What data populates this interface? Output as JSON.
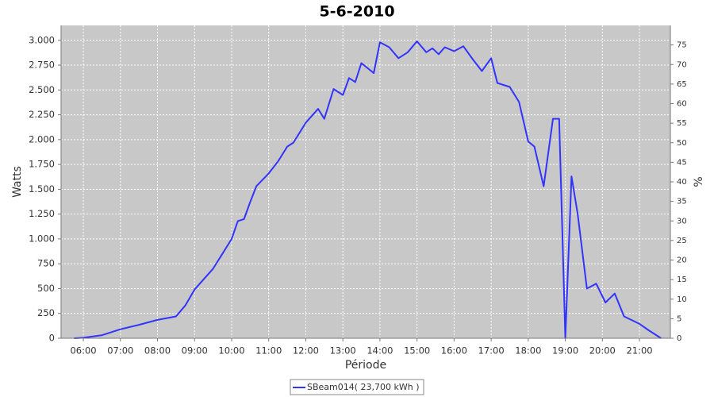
{
  "chart_data": {
    "type": "line",
    "title": "5-6-2010",
    "x_label": "Période",
    "y_label": "Watts",
    "y2_label": "%",
    "grid": true,
    "x": [
      "05:45",
      "06:00",
      "06:30",
      "07:00",
      "07:30",
      "08:00",
      "08:30",
      "08:45",
      "09:00",
      "09:30",
      "09:45",
      "10:00",
      "10:10",
      "10:20",
      "10:30",
      "10:40",
      "11:00",
      "11:15",
      "11:30",
      "11:40",
      "12:00",
      "12:20",
      "12:30",
      "12:45",
      "13:00",
      "13:10",
      "13:20",
      "13:30",
      "13:50",
      "14:00",
      "14:15",
      "14:30",
      "14:45",
      "15:00",
      "15:15",
      "15:25",
      "15:35",
      "15:45",
      "16:00",
      "16:15",
      "16:30",
      "16:45",
      "17:00",
      "17:10",
      "17:30",
      "17:45",
      "18:00",
      "18:10",
      "18:25",
      "18:40",
      "18:50",
      "19:00",
      "19:10",
      "19:20",
      "19:35",
      "19:50",
      "20:05",
      "20:20",
      "20:35",
      "21:00",
      "21:15",
      "21:35"
    ],
    "series": [
      {
        "name": "SBeam014( 23,700 kWh )",
        "color": "#3333ff",
        "values": [
          0,
          5,
          30,
          90,
          135,
          185,
          220,
          330,
          490,
          700,
          850,
          1000,
          1180,
          1200,
          1370,
          1530,
          1660,
          1780,
          1930,
          1970,
          2170,
          2310,
          2210,
          2510,
          2450,
          2620,
          2580,
          2770,
          2670,
          2980,
          2930,
          2820,
          2880,
          2990,
          2880,
          2920,
          2860,
          2930,
          2890,
          2940,
          2810,
          2690,
          2820,
          2570,
          2530,
          2380,
          1980,
          1930,
          1530,
          2210,
          2210,
          0,
          1630,
          1250,
          500,
          550,
          360,
          450,
          220,
          145,
          80,
          0
        ]
      }
    ],
    "xlim": [
      "05:24",
      "21:50"
    ],
    "xticks": [
      "06:00",
      "07:00",
      "08:00",
      "09:00",
      "10:00",
      "11:00",
      "12:00",
      "13:00",
      "14:00",
      "15:00",
      "16:00",
      "17:00",
      "18:00",
      "19:00",
      "20:00",
      "21:00"
    ],
    "ylim": [
      0,
      3150
    ],
    "yticks": [
      0,
      250,
      500,
      750,
      {
        "value": 1000,
        "label": "1.000"
      },
      {
        "value": 1250,
        "label": "1.250"
      },
      {
        "value": 1500,
        "label": "1.500"
      },
      {
        "value": 1750,
        "label": "1.750"
      },
      {
        "value": 2000,
        "label": "2.000"
      },
      {
        "value": 2250,
        "label": "2.250"
      },
      {
        "value": 2500,
        "label": "2.500"
      },
      {
        "value": 2750,
        "label": "2.750"
      },
      {
        "value": 3000,
        "label": "3.000"
      }
    ],
    "y2lim": [
      0,
      80
    ],
    "y2ticks": [
      0,
      5,
      10,
      15,
      20,
      25,
      30,
      35,
      40,
      45,
      50,
      55,
      60,
      65,
      70,
      75
    ]
  }
}
